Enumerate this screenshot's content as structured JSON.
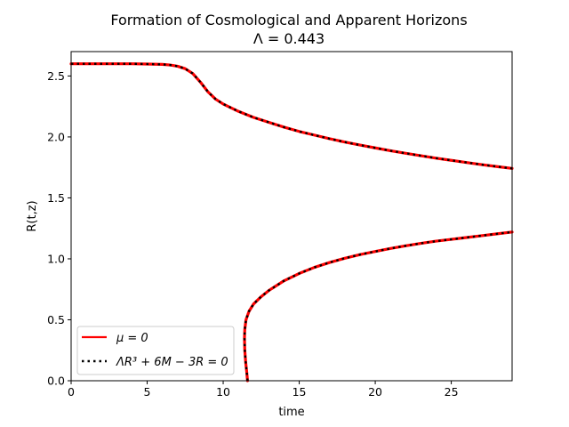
{
  "chart_data": {
    "type": "line",
    "title": "Formation of Cosmological and Apparent Horizons",
    "subtitle": "Λ = 0.443",
    "xlabel": "time",
    "ylabel": "R(t,z)",
    "xlim": [
      0,
      29
    ],
    "ylim": [
      0,
      2.7
    ],
    "xticks": [
      0,
      5,
      10,
      15,
      20,
      25
    ],
    "yticks": [
      0.0,
      0.5,
      1.0,
      1.5,
      2.0,
      2.5
    ],
    "xtick_labels": [
      "0",
      "5",
      "10",
      "15",
      "20",
      "25"
    ],
    "ytick_labels": [
      "0.0",
      "0.5",
      "1.0",
      "1.5",
      "2.0",
      "2.5"
    ],
    "grid": false,
    "legend_position": "lower-left",
    "series": [
      {
        "name": "μ = 0",
        "color": "#ff0000",
        "style": "solid",
        "curves": [
          {
            "x": [
              0,
              1,
              2,
              3,
              4,
              5,
              6,
              6.5,
              7,
              7.5,
              8,
              8.5,
              9,
              9.5,
              10,
              11,
              12,
              13,
              14,
              15,
              16,
              17,
              18,
              19,
              20,
              21,
              22,
              23,
              24,
              25,
              26,
              27,
              28,
              29
            ],
            "y": [
              2.6,
              2.6,
              2.6,
              2.6,
              2.6,
              2.598,
              2.595,
              2.59,
              2.58,
              2.56,
              2.52,
              2.45,
              2.37,
              2.31,
              2.27,
              2.21,
              2.16,
              2.12,
              2.08,
              2.045,
              2.015,
              1.985,
              1.958,
              1.933,
              1.91,
              1.887,
              1.866,
              1.846,
              1.826,
              1.808,
              1.79,
              1.773,
              1.757,
              1.742
            ]
          },
          {
            "x": [
              11.6,
              11.55,
              11.48,
              11.42,
              11.4,
              11.42,
              11.5,
              11.7,
              12.0,
              12.5,
              13,
              14,
              15,
              16,
              17,
              18,
              19,
              20,
              21,
              22,
              23,
              24,
              25,
              26,
              27,
              28,
              29
            ],
            "y": [
              0.0,
              0.07,
              0.15,
              0.25,
              0.35,
              0.42,
              0.5,
              0.57,
              0.63,
              0.69,
              0.74,
              0.82,
              0.88,
              0.93,
              0.97,
              1.005,
              1.035,
              1.06,
              1.085,
              1.107,
              1.127,
              1.145,
              1.16,
              1.175,
              1.19,
              1.205,
              1.22
            ]
          }
        ]
      },
      {
        "name": "ΛR³ + 6M − 3R = 0",
        "color": "#000000",
        "style": "dotted",
        "curves": "same-as-previous"
      }
    ]
  },
  "legend": {
    "entry_0": "μ = 0",
    "entry_1": "ΛR³ + 6M − 3R = 0"
  }
}
